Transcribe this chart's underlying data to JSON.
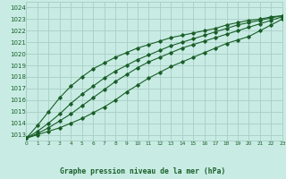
{
  "title": "Graphe pression niveau de la mer (hPa)",
  "bg_color": "#c8ece4",
  "grid_color": "#a8cec6",
  "line_color": "#1a5e28",
  "xlim": [
    0,
    23
  ],
  "ylim": [
    1012.5,
    1024.5
  ],
  "xticks": [
    0,
    1,
    2,
    3,
    4,
    5,
    6,
    7,
    8,
    9,
    10,
    11,
    12,
    13,
    14,
    15,
    16,
    17,
    18,
    19,
    20,
    21,
    22,
    23
  ],
  "yticks": [
    1013,
    1014,
    1015,
    1016,
    1017,
    1018,
    1019,
    1020,
    1021,
    1022,
    1023,
    1024
  ],
  "series": [
    [
      1012.7,
      1013.0,
      1013.3,
      1013.6,
      1014.0,
      1014.4,
      1014.9,
      1015.4,
      1016.0,
      1016.7,
      1017.3,
      1017.9,
      1018.4,
      1018.9,
      1019.3,
      1019.7,
      1020.1,
      1020.5,
      1020.9,
      1021.2,
      1021.5,
      1022.0,
      1022.5,
      1023.0
    ],
    [
      1012.7,
      1013.1,
      1013.6,
      1014.2,
      1014.8,
      1015.5,
      1016.2,
      1016.9,
      1017.6,
      1018.2,
      1018.8,
      1019.3,
      1019.7,
      1020.1,
      1020.5,
      1020.8,
      1021.1,
      1021.4,
      1021.7,
      1022.0,
      1022.3,
      1022.6,
      1022.9,
      1023.2
    ],
    [
      1012.7,
      1013.3,
      1014.0,
      1014.8,
      1015.7,
      1016.5,
      1017.2,
      1017.9,
      1018.5,
      1019.0,
      1019.5,
      1019.9,
      1020.3,
      1020.7,
      1021.0,
      1021.3,
      1021.6,
      1021.9,
      1022.2,
      1022.5,
      1022.7,
      1022.9,
      1023.1,
      1023.3
    ],
    [
      1012.7,
      1013.8,
      1015.0,
      1016.2,
      1017.2,
      1018.0,
      1018.7,
      1019.2,
      1019.7,
      1020.1,
      1020.5,
      1020.8,
      1021.1,
      1021.4,
      1021.6,
      1021.8,
      1022.0,
      1022.2,
      1022.5,
      1022.7,
      1022.9,
      1023.0,
      1023.2,
      1023.3
    ]
  ]
}
